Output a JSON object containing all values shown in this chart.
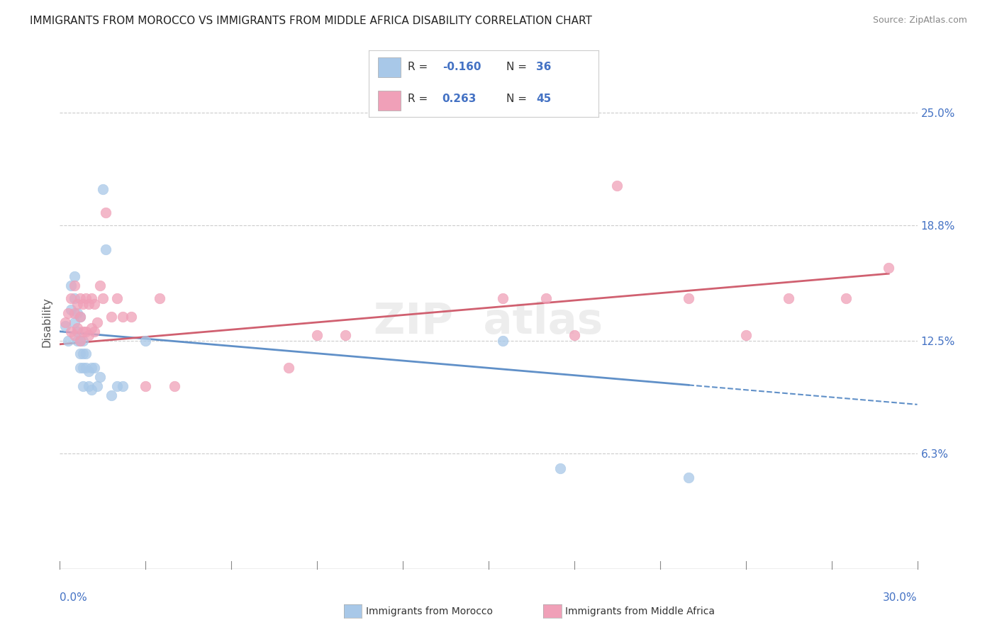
{
  "title": "IMMIGRANTS FROM MOROCCO VS IMMIGRANTS FROM MIDDLE AFRICA DISABILITY CORRELATION CHART",
  "source": "Source: ZipAtlas.com",
  "ylabel": "Disability",
  "ytick_labels": [
    "6.3%",
    "12.5%",
    "18.8%",
    "25.0%"
  ],
  "ytick_values": [
    0.063,
    0.125,
    0.188,
    0.25
  ],
  "xmin": 0.0,
  "xmax": 0.3,
  "ymin": 0.0,
  "ymax": 0.27,
  "color_morocco": "#a8c8e8",
  "color_middle_africa": "#f0a0b8",
  "line_color_morocco": "#6090c8",
  "line_color_middle_africa": "#d06070",
  "morocco_x": [
    0.002,
    0.003,
    0.004,
    0.004,
    0.005,
    0.005,
    0.005,
    0.006,
    0.006,
    0.006,
    0.007,
    0.007,
    0.007,
    0.007,
    0.008,
    0.008,
    0.008,
    0.008,
    0.009,
    0.009,
    0.01,
    0.01,
    0.011,
    0.011,
    0.012,
    0.013,
    0.014,
    0.015,
    0.016,
    0.018,
    0.02,
    0.022,
    0.03,
    0.155,
    0.175,
    0.22
  ],
  "morocco_y": [
    0.133,
    0.125,
    0.155,
    0.142,
    0.16,
    0.148,
    0.135,
    0.14,
    0.13,
    0.125,
    0.138,
    0.125,
    0.118,
    0.11,
    0.125,
    0.118,
    0.11,
    0.1,
    0.118,
    0.11,
    0.108,
    0.1,
    0.11,
    0.098,
    0.11,
    0.1,
    0.105,
    0.208,
    0.175,
    0.095,
    0.1,
    0.1,
    0.125,
    0.125,
    0.055,
    0.05
  ],
  "middle_africa_x": [
    0.002,
    0.003,
    0.004,
    0.004,
    0.005,
    0.005,
    0.005,
    0.006,
    0.006,
    0.007,
    0.007,
    0.007,
    0.008,
    0.008,
    0.009,
    0.009,
    0.01,
    0.01,
    0.011,
    0.011,
    0.012,
    0.012,
    0.013,
    0.014,
    0.015,
    0.016,
    0.018,
    0.02,
    0.022,
    0.025,
    0.03,
    0.035,
    0.04,
    0.08,
    0.09,
    0.1,
    0.155,
    0.17,
    0.18,
    0.195,
    0.22,
    0.24,
    0.255,
    0.275,
    0.29
  ],
  "middle_africa_y": [
    0.135,
    0.14,
    0.148,
    0.13,
    0.155,
    0.14,
    0.128,
    0.145,
    0.132,
    0.148,
    0.138,
    0.125,
    0.145,
    0.13,
    0.148,
    0.13,
    0.145,
    0.128,
    0.148,
    0.132,
    0.145,
    0.13,
    0.135,
    0.155,
    0.148,
    0.195,
    0.138,
    0.148,
    0.138,
    0.138,
    0.1,
    0.148,
    0.1,
    0.11,
    0.128,
    0.128,
    0.148,
    0.148,
    0.128,
    0.21,
    0.148,
    0.128,
    0.148,
    0.148,
    0.165
  ],
  "line_morocco_x0": 0.0,
  "line_morocco_x1": 0.3,
  "line_morocco_y0": 0.13,
  "line_morocco_y1": 0.09,
  "line_africa_x0": 0.0,
  "line_africa_x1": 0.3,
  "line_africa_y0": 0.123,
  "line_africa_y1": 0.163,
  "line_solid_end_morocco": 0.22,
  "line_solid_end_africa": 0.29
}
